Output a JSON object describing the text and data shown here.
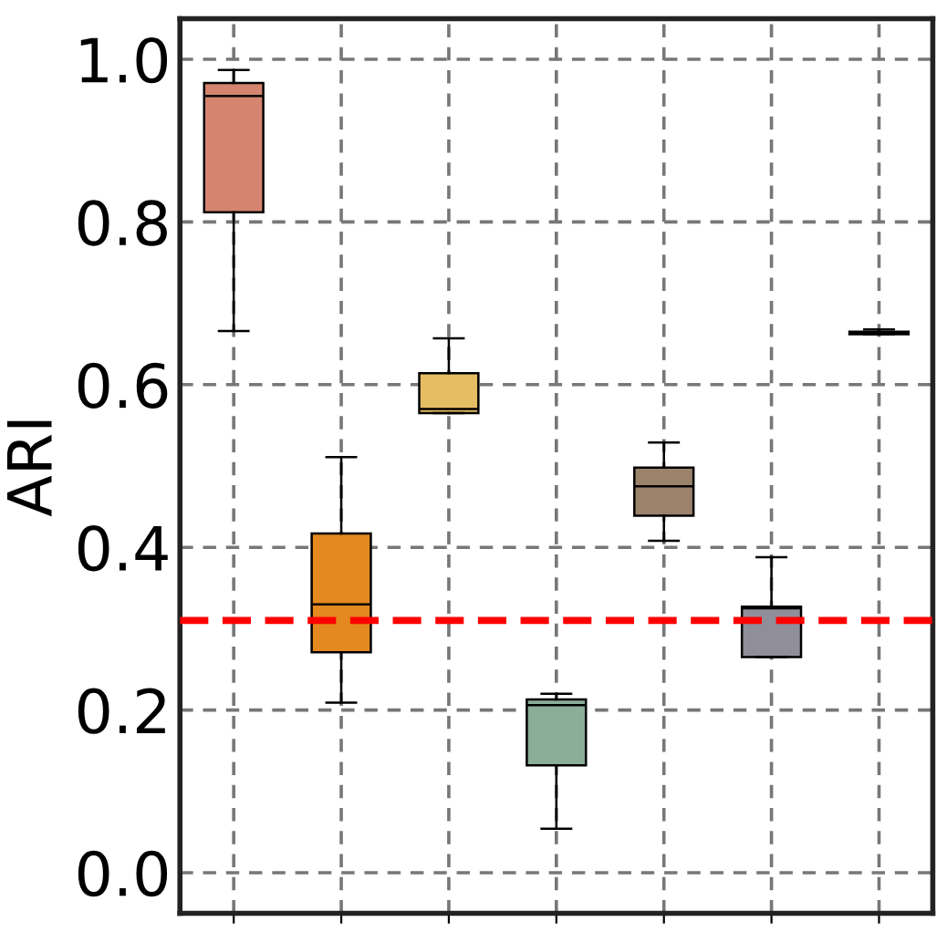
{
  "chart_data": {
    "type": "box",
    "ylabel": "ARI",
    "categories": [
      null,
      null,
      null,
      null,
      null,
      null,
      null
    ],
    "boxes": [
      {
        "low": 0.666,
        "q1": 0.812,
        "median": 0.955,
        "q3": 0.971,
        "high": 0.987
      },
      {
        "low": 0.209,
        "q1": 0.271,
        "median": 0.33,
        "q3": 0.417,
        "high": 0.511
      },
      {
        "low": 0.565,
        "q1": 0.565,
        "median": 0.57,
        "q3": 0.614,
        "high": 0.657
      },
      {
        "low": 0.054,
        "q1": 0.132,
        "median": 0.206,
        "q3": 0.213,
        "high": 0.22
      },
      {
        "low": 0.408,
        "q1": 0.439,
        "median": 0.475,
        "q3": 0.498,
        "high": 0.529
      },
      {
        "low": 0.265,
        "q1": 0.265,
        "median": 0.325,
        "q3": 0.327,
        "high": 0.388
      },
      {
        "low": 0.662,
        "q1": 0.662,
        "median": 0.664,
        "q3": 0.665,
        "high": 0.668
      }
    ],
    "colors": [
      "#d4846f",
      "#e3891f",
      "#e5bd63",
      "#8aae98",
      "#9b836b",
      "#8f8e99",
      "#9a9a9a"
    ],
    "ylim": [
      -0.05,
      1.05
    ],
    "yticks": [
      {
        "value": 0,
        "label": "0.0"
      },
      0.2,
      0.4,
      0.6,
      0.8,
      {
        "value": 1,
        "label": "1.0"
      }
    ],
    "ref_lines": [
      {
        "axis": "y",
        "value": 0.31,
        "color": "#ff0000",
        "line_style": "dashed"
      }
    ],
    "grid": true
  }
}
